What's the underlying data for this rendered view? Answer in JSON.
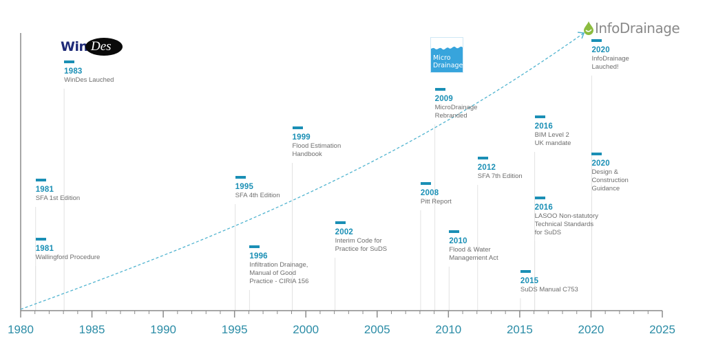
{
  "chart_data": {
    "type": "timeline",
    "title": "",
    "xlabel": "",
    "ylabel": "",
    "xlim": [
      1980,
      2025
    ],
    "x_ticks": [
      "1980",
      "1985",
      "1990",
      "1995",
      "2000",
      "2005",
      "2010",
      "2015",
      "2020",
      "2025"
    ],
    "minor_tick_step_years": 1,
    "trend": {
      "style": "dashed-arrow",
      "from_year": 1980,
      "to_year": 2019.5
    },
    "events": [
      {
        "year": "1983",
        "label": [
          "WinDes Lauched"
        ],
        "logo": "WinDes"
      },
      {
        "year": "1981",
        "label": [
          "SFA 1st Edition"
        ]
      },
      {
        "year": "1981",
        "label": [
          "Wallingford Procedure"
        ]
      },
      {
        "year": "1995",
        "label": [
          "SFA 4th Edition"
        ]
      },
      {
        "year": "1996",
        "label": [
          "Infiltration Drainage,",
          "Manual of Good",
          "Practice - CIRIA 156"
        ]
      },
      {
        "year": "1999",
        "label": [
          "Flood Estimation",
          "Handbook"
        ]
      },
      {
        "year": "2002",
        "label": [
          "Interim Code for",
          "Practice for SuDS"
        ]
      },
      {
        "year": "2008",
        "label": [
          "Pitt Report"
        ]
      },
      {
        "year": "2009",
        "label": [
          "MicroDrainage",
          "Rebranded"
        ],
        "logo": "MicroDrainage"
      },
      {
        "year": "2010",
        "label": [
          "Flood & Water",
          "Management Act"
        ]
      },
      {
        "year": "2012",
        "label": [
          "SFA 7th Edition"
        ]
      },
      {
        "year": "2015",
        "label": [
          "SuDS Manual C753"
        ]
      },
      {
        "year": "2016",
        "label": [
          "BIM Level 2",
          "UK mandate"
        ]
      },
      {
        "year": "2016",
        "label": [
          "LASOO Non-statutory",
          "Technical Standards",
          "for SuDS"
        ]
      },
      {
        "year": "2020",
        "label": [
          "InfoDrainage",
          "Lauched!"
        ],
        "logo": "InfoDrainage"
      },
      {
        "year": "2020",
        "label": [
          "Design &",
          "Construction",
          "Guidance"
        ]
      }
    ]
  },
  "logos": {
    "windes": {
      "part1": "Win",
      "part2": "Des"
    },
    "microdrainage": {
      "line1": "Micro",
      "line2": "Drainage"
    },
    "infodrainage": {
      "text": "InfoDrainage"
    }
  },
  "colors": {
    "accent": "#1a8fb5",
    "axis": "#8a8a8a",
    "stem": "#e2e2e2",
    "tick_label": "#2b8ca6",
    "trend": "#4fb3cf"
  }
}
